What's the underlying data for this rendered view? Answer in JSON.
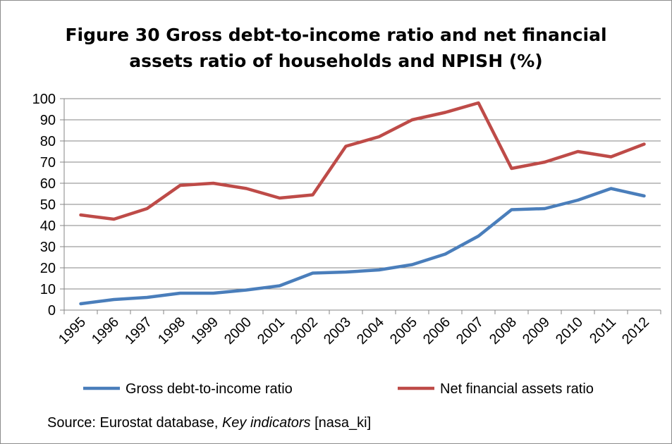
{
  "chart_data": {
    "type": "line",
    "title_line1": "Figure 30  Gross debt-to-income ratio and net financial",
    "title_line2": "assets ratio of households and NPISH (%)",
    "xlabel": "",
    "ylabel": "",
    "ylim": [
      0,
      100
    ],
    "yticks": [
      0,
      10,
      20,
      30,
      40,
      50,
      60,
      70,
      80,
      90,
      100
    ],
    "categories": [
      "1995",
      "1996",
      "1997",
      "1998",
      "1999",
      "2000",
      "2001",
      "2002",
      "2003",
      "2004",
      "2005",
      "2006",
      "2007",
      "2008",
      "2009",
      "2010",
      "2011",
      "2012"
    ],
    "grid": true,
    "legend_position": "bottom",
    "series": [
      {
        "name": "Gross debt-to-income ratio",
        "color": "#4a7ebb",
        "values": [
          3,
          5,
          6,
          8,
          8,
          9.5,
          11.5,
          17.5,
          18,
          19,
          21.5,
          26.5,
          35,
          47.5,
          48,
          52,
          57.5,
          54
        ]
      },
      {
        "name": "Net financial assets ratio",
        "color": "#be4b48",
        "values": [
          45,
          43,
          48,
          59,
          60,
          57.5,
          53,
          54.5,
          77.5,
          82,
          90,
          93.5,
          98,
          67,
          70,
          75,
          72.5,
          78.5
        ]
      }
    ]
  },
  "source": {
    "prefix": "Source: Eurostat database, ",
    "italic": "Key indicators",
    "suffix": " [nasa_ki]"
  }
}
